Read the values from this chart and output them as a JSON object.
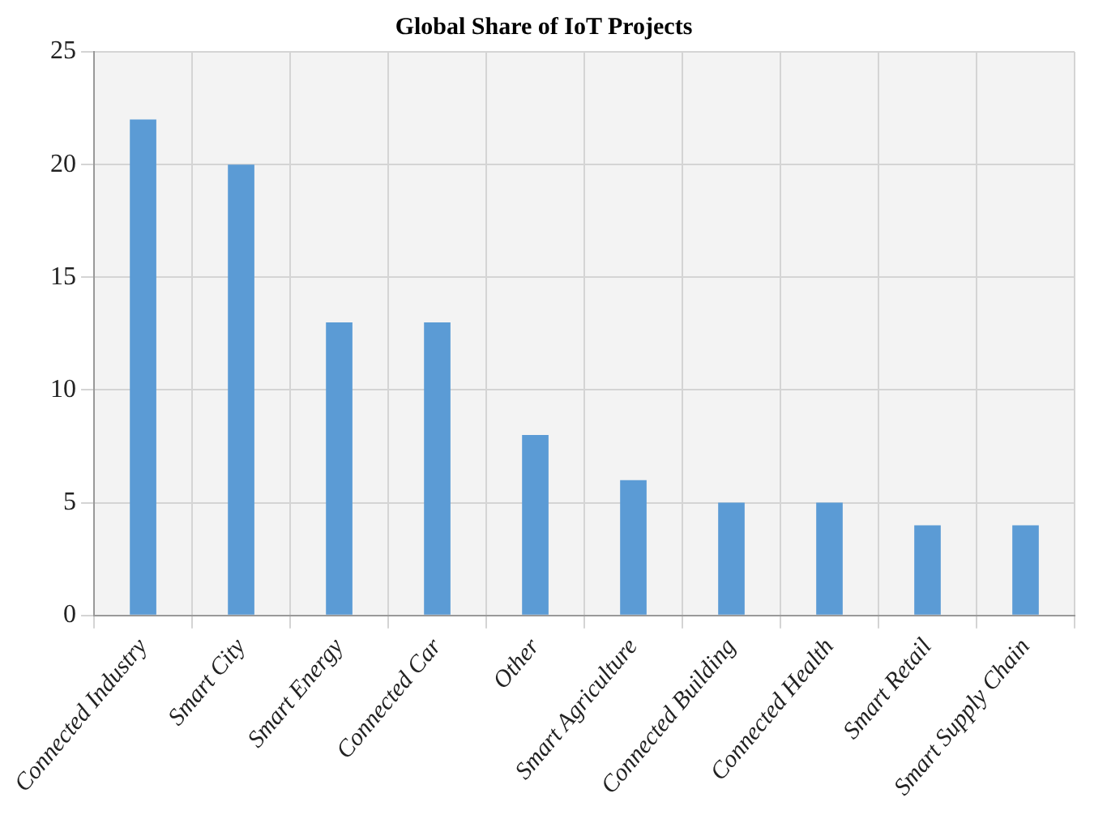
{
  "chart_data": {
    "type": "bar",
    "title": "Global Share of IoT Projects",
    "categories": [
      "Connected Industry",
      "Smart City",
      "Smart Energy",
      "Connected Car",
      "Other",
      "Smart Agriculture",
      "Connected Building",
      "Connected Health",
      "Smart Retail",
      "Smart Supply Chain"
    ],
    "values": [
      22,
      20,
      13,
      13,
      8,
      6,
      5,
      5,
      4,
      4
    ],
    "color": "#5b9bd5",
    "ylim": [
      0,
      25
    ],
    "yticks": [
      0,
      5,
      10,
      15,
      20,
      25
    ],
    "grid": true
  }
}
